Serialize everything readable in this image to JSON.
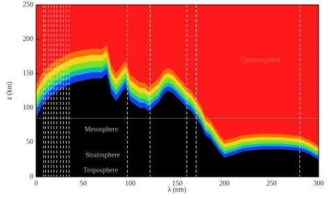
{
  "chart_data": {
    "type": "absorption-map",
    "x_label": "λ (nm)",
    "y_label": "z (km)",
    "xlim": [
      0,
      300
    ],
    "ylim": [
      0,
      250
    ],
    "xticks": [
      0,
      50,
      100,
      150,
      200,
      250,
      300
    ],
    "yticks": [
      0,
      50,
      100,
      150,
      200,
      250
    ],
    "x": [
      0,
      5,
      10,
      20,
      30,
      40,
      50,
      60,
      70,
      75,
      80,
      85,
      90,
      95,
      100,
      105,
      110,
      115,
      120,
      125,
      130,
      135,
      140,
      145,
      150,
      155,
      160,
      165,
      170,
      175,
      180,
      185,
      190,
      195,
      200,
      210,
      220,
      240,
      260,
      280,
      290,
      300
    ],
    "values": [
      85,
      100,
      110,
      122,
      130,
      137,
      140,
      143,
      143,
      150,
      120,
      110,
      120,
      130,
      110,
      105,
      100,
      100,
      95,
      102,
      108,
      120,
      125,
      122,
      115,
      108,
      100,
      95,
      85,
      75,
      60,
      55,
      45,
      35,
      28,
      32,
      37,
      40,
      40,
      38,
      33,
      25
    ],
    "reference_lines_x": [
      8,
      10,
      13,
      16,
      19,
      22,
      26,
      29,
      32,
      35,
      97,
      121,
      160,
      170,
      280
    ],
    "reference_lines_y": [
      85
    ],
    "annotations": [
      "Thermosphere",
      "Mesosphere",
      "Stratosphere",
      "Troposphere"
    ],
    "background_color": "#ff1a1a"
  }
}
